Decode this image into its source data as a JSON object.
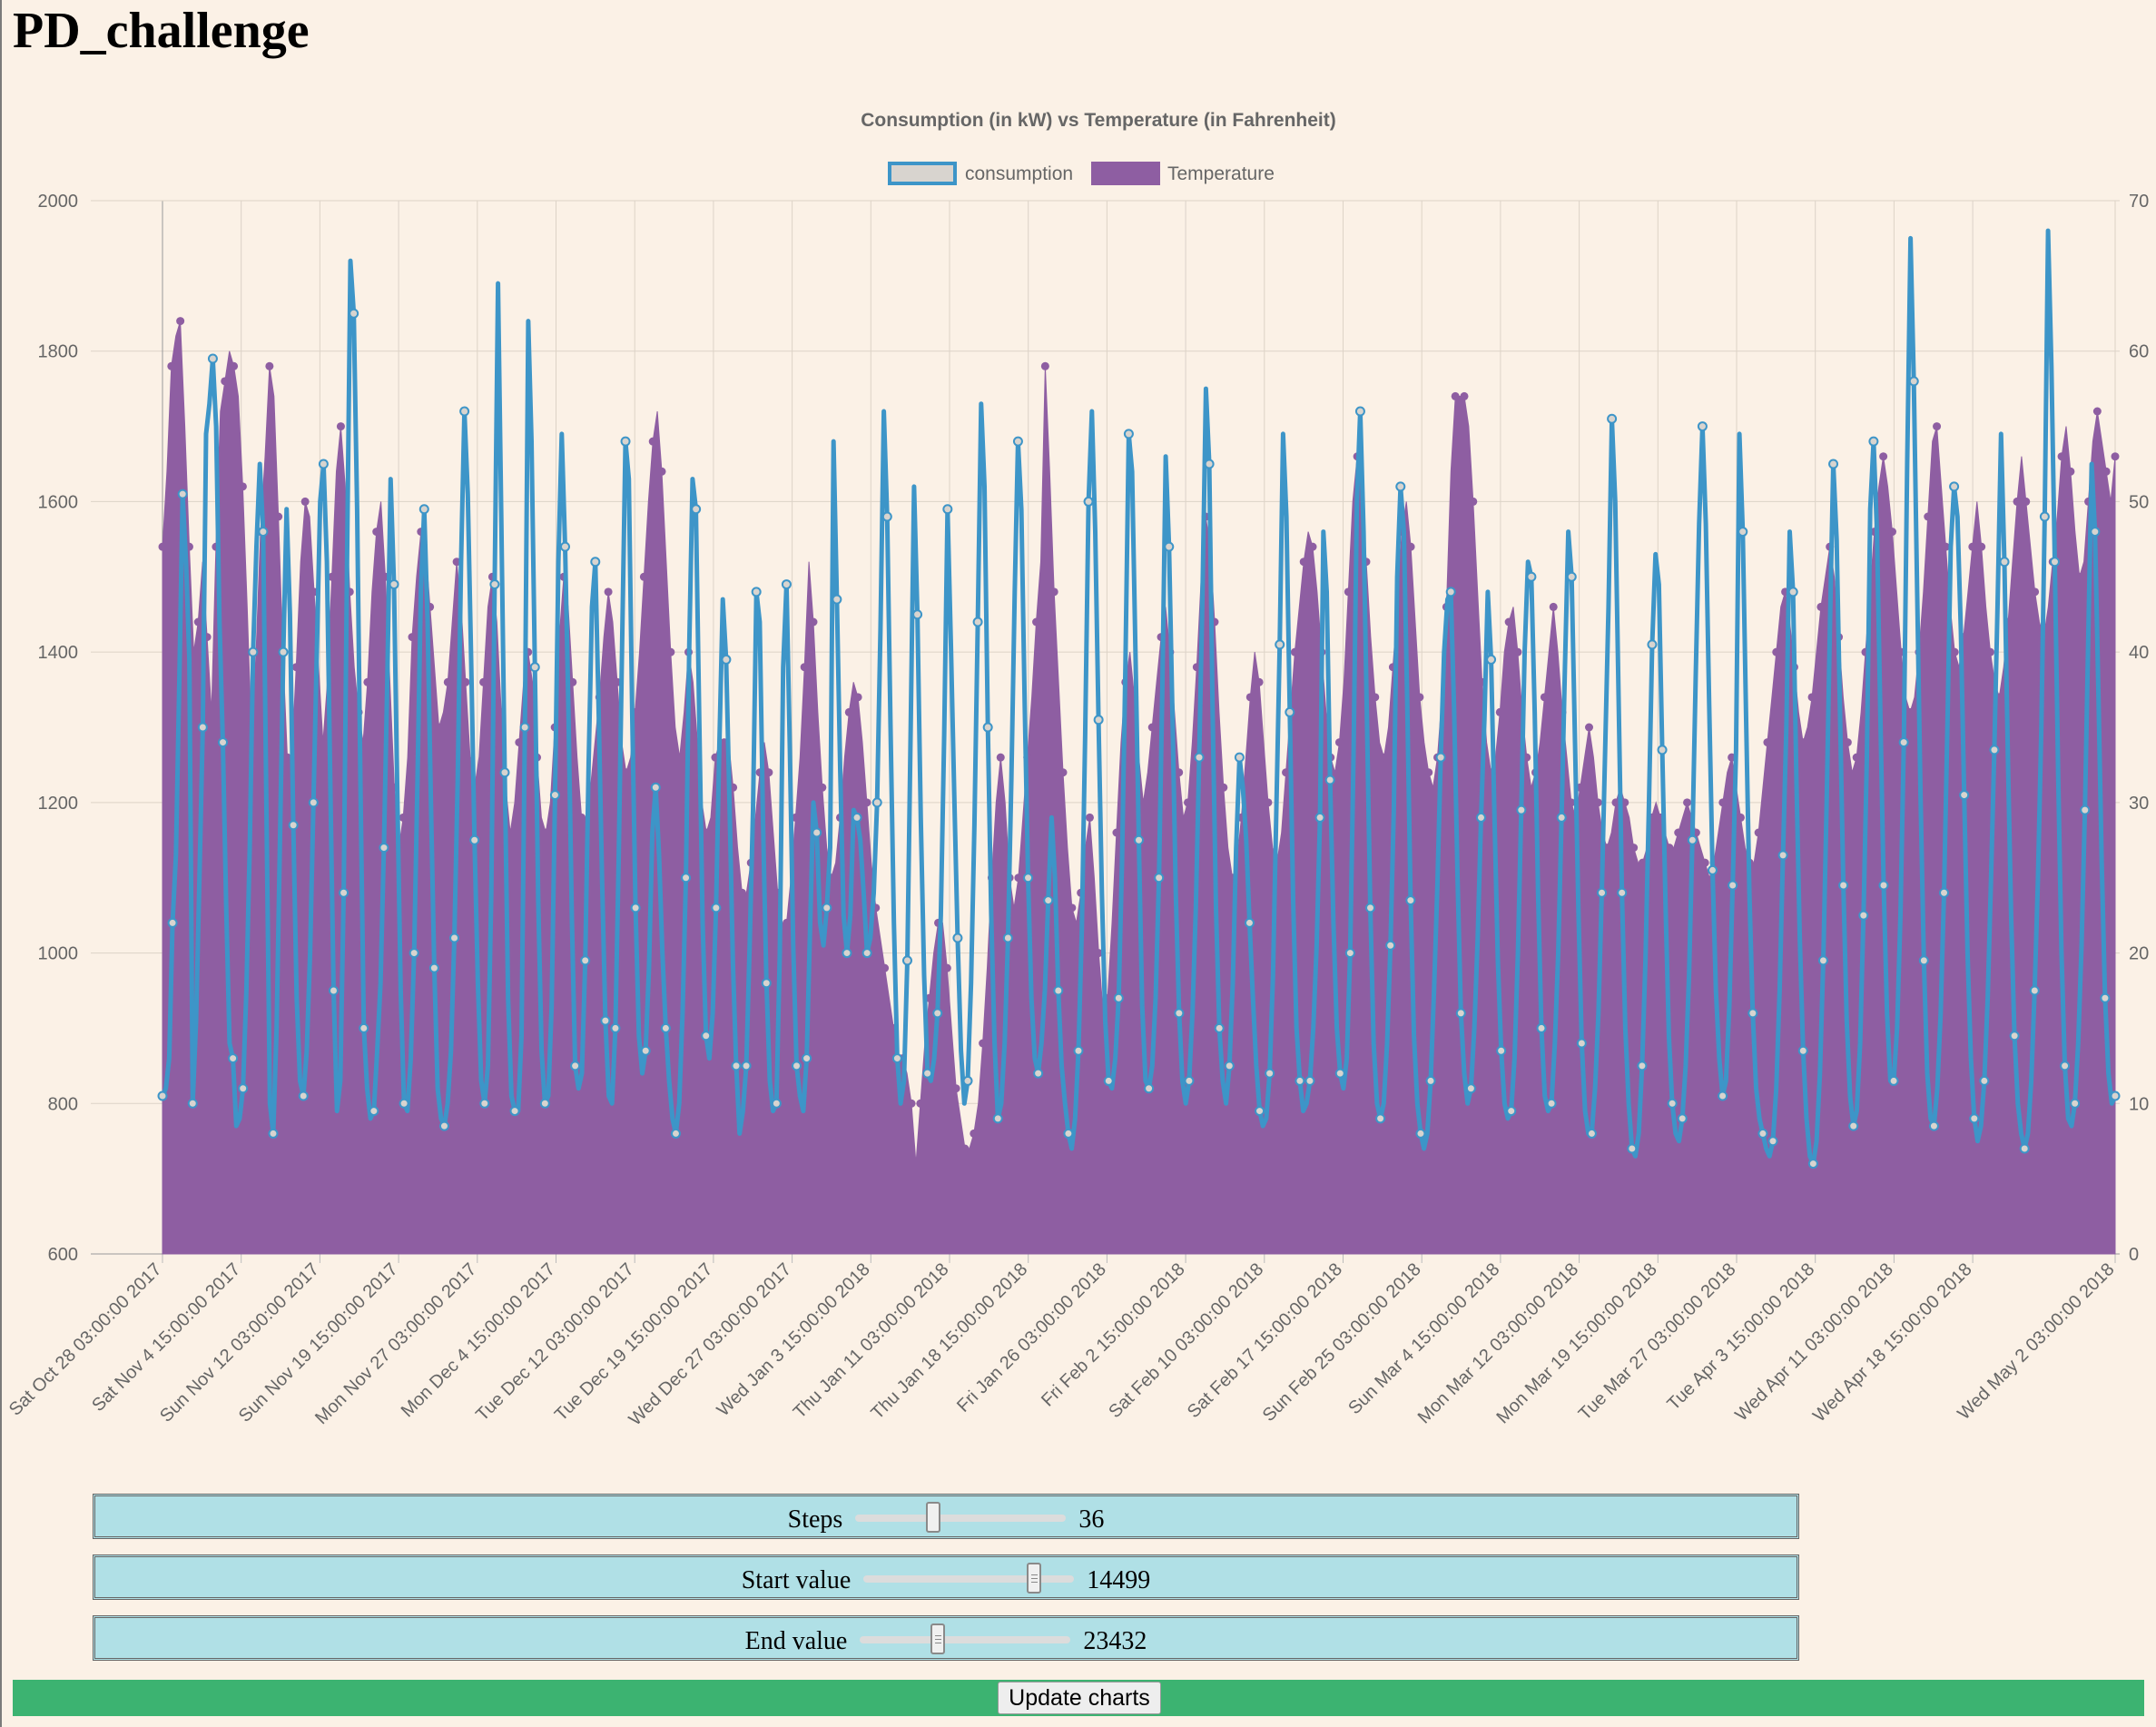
{
  "page": {
    "title": "PD_challenge"
  },
  "colors": {
    "consumption": "#3d95c8",
    "temperature": "#8e5ea2",
    "control_bg": "#b0e0e6",
    "update_bar": "#3cb371"
  },
  "chart_data": {
    "type": "line",
    "title": "Consumption (in kW) vs Temperature (in Fahrenheit)",
    "legend_position": "top",
    "grid": true,
    "x_tick_labels": [
      "Sat Oct 28 03:00:00 2017",
      "Sat Nov  4 15:00:00 2017",
      "Sun Nov 12 03:00:00 2017",
      "Sun Nov 19 15:00:00 2017",
      "Mon Nov 27 03:00:00 2017",
      "Mon Dec  4 15:00:00 2017",
      "Tue Dec 12 03:00:00 2017",
      "Tue Dec 19 15:00:00 2017",
      "Wed Dec 27 03:00:00 2017",
      "Wed Jan  3 15:00:00 2018",
      "Thu Jan 11 03:00:00 2018",
      "Thu Jan 18 15:00:00 2018",
      "Fri Jan 26 03:00:00 2018",
      "Fri Feb  2 15:00:00 2018",
      "Sat Feb 10 03:00:00 2018",
      "Sat Feb 17 15:00:00 2018",
      "Sun Feb 25 03:00:00 2018",
      "Sun Mar  4 15:00:00 2018",
      "Mon Mar 12 03:00:00 2018",
      "Mon Mar 19 15:00:00 2018",
      "Tue Mar 27 03:00:00 2018",
      "Tue Apr  3 15:00:00 2018",
      "Wed Apr 11 03:00:00 2018",
      "Wed Apr 18 15:00:00 2018",
      "Wed May  2 03:00:00 2018"
    ],
    "y_left": {
      "min": 600,
      "max": 2000,
      "ticks": [
        600,
        800,
        1000,
        1200,
        1400,
        1600,
        1800,
        2000
      ]
    },
    "y_right": {
      "min": 0,
      "max": 70,
      "ticks": [
        0,
        10,
        20,
        30,
        40,
        50,
        60,
        70
      ]
    },
    "series": [
      {
        "name": "consumption",
        "axis": "left",
        "style": "line",
        "values": [
          810,
          820,
          860,
          1040,
          1130,
          1360,
          1610,
          1520,
          1390,
          800,
          910,
          1100,
          1300,
          1690,
          1730,
          1790,
          1700,
          1440,
          1280,
          1060,
          880,
          860,
          770,
          780,
          820,
          950,
          1140,
          1400,
          1540,
          1650,
          1560,
          1180,
          800,
          760,
          900,
          1150,
          1400,
          1590,
          1450,
          1170,
          940,
          830,
          810,
          870,
          1000,
          1200,
          1400,
          1600,
          1650,
          1520,
          1230,
          950,
          790,
          830,
          1080,
          1520,
          1920,
          1850,
          1590,
          1220,
          900,
          820,
          780,
          790,
          870,
          960,
          1140,
          1360,
          1630,
          1490,
          1210,
          950,
          800,
          790,
          860,
          1000,
          1230,
          1480,
          1590,
          1440,
          1200,
          980,
          820,
          780,
          770,
          800,
          870,
          1020,
          1230,
          1520,
          1720,
          1610,
          1390,
          1150,
          960,
          830,
          800,
          850,
          1080,
          1490,
          1890,
          1570,
          1240,
          940,
          810,
          790,
          790,
          890,
          1300,
          1840,
          1680,
          1380,
          1070,
          870,
          800,
          810,
          930,
          1210,
          1520,
          1690,
          1540,
          1320,
          1050,
          850,
          820,
          840,
          990,
          1250,
          1460,
          1520,
          1320,
          1100,
          910,
          810,
          800,
          900,
          1130,
          1410,
          1680,
          1630,
          1320,
          1060,
          890,
          840,
          870,
          980,
          1160,
          1220,
          1130,
          1000,
          900,
          830,
          780,
          760,
          800,
          920,
          1100,
          1410,
          1630,
          1590,
          1310,
          1040,
          890,
          860,
          920,
          1060,
          1280,
          1470,
          1390,
          1200,
          990,
          850,
          760,
          790,
          850,
          1010,
          1190,
          1480,
          1440,
          1170,
          960,
          830,
          790,
          800,
          1000,
          1380,
          1490,
          1270,
          1010,
          850,
          810,
          790,
          860,
          1030,
          1200,
          1160,
          1040,
          1010,
          1060,
          1140,
          1680,
          1470,
          1240,
          1050,
          1000,
          1050,
          1190,
          1180,
          1150,
          1080,
          1000,
          1020,
          1080,
          1200,
          1430,
          1720,
          1580,
          1300,
          1040,
          860,
          800,
          830,
          990,
          1300,
          1620,
          1450,
          1180,
          970,
          840,
          830,
          860,
          920,
          1050,
          1290,
          1590,
          1410,
          1210,
          1020,
          870,
          800,
          830,
          960,
          1170,
          1440,
          1730,
          1620,
          1300,
          1050,
          880,
          780,
          800,
          880,
          1020,
          1230,
          1480,
          1680,
          1590,
          1330,
          1100,
          940,
          860,
          840,
          880,
          950,
          1070,
          1180,
          1100,
          950,
          850,
          800,
          760,
          740,
          780,
          870,
          1030,
          1290,
          1600,
          1720,
          1560,
          1310,
          1080,
          910,
          830,
          820,
          860,
          940,
          1120,
          1380,
          1690,
          1640,
          1400,
          1150,
          930,
          830,
          820,
          850,
          940,
          1100,
          1350,
          1660,
          1540,
          1320,
          1080,
          920,
          830,
          800,
          830,
          920,
          1060,
          1260,
          1480,
          1750,
          1650,
          1320,
          1060,
          900,
          830,
          800,
          850,
          960,
          1140,
          1260,
          1220,
          1150,
          1040,
          940,
          850,
          790,
          770,
          780,
          840,
          970,
          1190,
          1410,
          1690,
          1580,
          1320,
          1070,
          900,
          830,
          790,
          800,
          830,
          900,
          1010,
          1180,
          1560,
          1480,
          1230,
          1040,
          900,
          840,
          820,
          860,
          1000,
          1260,
          1600,
          1720,
          1560,
          1310,
          1060,
          880,
          800,
          780,
          800,
          880,
          1010,
          1190,
          1500,
          1620,
          1560,
          1330,
          1070,
          890,
          800,
          760,
          740,
          760,
          830,
          950,
          1090,
          1260,
          1400,
          1470,
          1480,
          1320,
          1100,
          920,
          840,
          800,
          820,
          900,
          1020,
          1180,
          1310,
          1480,
          1390,
          1180,
          990,
          870,
          800,
          780,
          790,
          860,
          1000,
          1190,
          1400,
          1520,
          1500,
          1320,
          1080,
          900,
          810,
          790,
          800,
          880,
          1000,
          1180,
          1380,
          1560,
          1500,
          1280,
          1060,
          880,
          790,
          760,
          760,
          820,
          920,
          1080,
          1270,
          1460,
          1710,
          1600,
          1340,
          1080,
          900,
          800,
          740,
          730,
          760,
          850,
          990,
          1190,
          1410,
          1530,
          1490,
          1270,
          1060,
          890,
          800,
          760,
          750,
          780,
          850,
          970,
          1150,
          1370,
          1570,
          1700,
          1570,
          1330,
          1110,
          950,
          860,
          810,
          830,
          930,
          1090,
          1270,
          1690,
          1560,
          1310,
          1080,
          920,
          820,
          780,
          760,
          740,
          730,
          750,
          820,
          950,
          1130,
          1300,
          1560,
          1480,
          1230,
          1020,
          870,
          780,
          730,
          720,
          750,
          840,
          990,
          1200,
          1440,
          1650,
          1550,
          1320,
          1090,
          910,
          810,
          770,
          790,
          880,
          1050,
          1260,
          1590,
          1680,
          1560,
          1320,
          1090,
          920,
          830,
          830,
          900,
          1050,
          1280,
          1650,
          1950,
          1760,
          1480,
          1210,
          990,
          840,
          780,
          770,
          820,
          920,
          1080,
          1300,
          1540,
          1620,
          1580,
          1430,
          1210,
          1000,
          860,
          780,
          750,
          770,
          830,
          940,
          1100,
          1270,
          1470,
          1690,
          1520,
          1270,
          1050,
          890,
          800,
          760,
          740,
          760,
          830,
          950,
          1100,
          1300,
          1580,
          1960,
          1780,
          1520,
          1240,
          1000,
          850,
          780,
          770,
          800,
          880,
          1010,
          1190,
          1420,
          1650,
          1560,
          1350,
          1120,
          940,
          840,
          800,
          810
        ]
      },
      {
        "name": "Temperature",
        "axis": "right",
        "style": "area",
        "values": [
          47,
          52,
          59,
          61,
          62,
          55,
          47,
          40,
          42,
          46,
          41,
          36,
          47,
          56,
          58,
          60,
          59,
          57,
          51,
          43,
          34,
          40,
          48,
          53,
          59,
          57,
          49,
          40,
          33,
          33,
          39,
          46,
          50,
          49,
          44,
          39,
          34,
          38,
          45,
          52,
          55,
          51,
          44,
          39,
          36,
          34,
          38,
          44,
          48,
          50,
          45,
          38,
          31,
          27,
          29,
          33,
          41,
          45,
          48,
          47,
          43,
          39,
          35,
          36,
          38,
          42,
          46,
          43,
          38,
          33,
          31,
          33,
          38,
          43,
          45,
          42,
          36,
          31,
          28,
          30,
          34,
          38,
          40,
          38,
          33,
          29,
          28,
          30,
          35,
          41,
          45,
          43,
          38,
          33,
          29,
          29,
          31,
          34,
          37,
          41,
          44,
          42,
          38,
          34,
          32,
          33,
          36,
          40,
          45,
          50,
          54,
          56,
          52,
          46,
          40,
          35,
          33,
          36,
          40,
          38,
          34,
          30,
          28,
          29,
          33,
          34,
          34,
          34,
          31,
          27,
          24,
          24,
          26,
          29,
          32,
          34,
          32,
          28,
          24,
          22,
          22,
          25,
          29,
          33,
          39,
          46,
          42,
          36,
          31,
          27,
          25,
          26,
          29,
          33,
          36,
          38,
          37,
          34,
          30,
          26,
          23,
          21,
          19,
          17,
          15,
          13,
          13,
          12,
          10,
          6,
          10,
          14,
          17,
          20,
          22,
          22,
          19,
          15,
          11,
          9,
          7,
          7,
          8,
          10,
          14,
          19,
          25,
          30,
          33,
          30,
          25,
          23,
          25,
          29,
          33,
          37,
          42,
          46,
          59,
          52,
          44,
          38,
          32,
          27,
          23,
          22,
          24,
          27,
          29,
          25,
          20,
          16,
          17,
          22,
          28,
          34,
          38,
          40,
          37,
          33,
          30,
          32,
          35,
          38,
          41,
          43,
          40,
          36,
          32,
          29,
          30,
          34,
          39,
          45,
          49,
          47,
          42,
          36,
          31,
          27,
          25,
          26,
          29,
          33,
          37,
          40,
          38,
          34,
          30,
          27,
          26,
          28,
          32,
          36,
          40,
          43,
          46,
          48,
          47,
          44,
          40,
          36,
          33,
          32,
          34,
          38,
          44,
          50,
          53,
          51,
          46,
          41,
          37,
          34,
          33,
          35,
          39,
          43,
          48,
          50,
          47,
          42,
          37,
          34,
          32,
          31,
          33,
          37,
          43,
          52,
          57,
          57,
          57,
          55,
          50,
          44,
          38,
          34,
          32,
          33,
          36,
          40,
          42,
          43,
          40,
          36,
          33,
          31,
          32,
          34,
          37,
          40,
          43,
          40,
          36,
          33,
          30,
          29,
          31,
          33,
          35,
          33,
          30,
          28,
          27,
          28,
          30,
          31,
          30,
          29,
          27,
          26,
          26,
          27,
          29,
          30,
          29,
          28,
          27,
          27,
          28,
          29,
          30,
          29,
          28,
          27,
          26,
          25,
          26,
          28,
          30,
          32,
          33,
          31,
          29,
          27,
          26,
          26,
          28,
          31,
          34,
          37,
          40,
          43,
          44,
          42,
          39,
          36,
          34,
          35,
          37,
          40,
          43,
          45,
          47,
          45,
          41,
          37,
          34,
          32,
          33,
          36,
          40,
          44,
          48,
          51,
          53,
          51,
          48,
          44,
          40,
          37,
          36,
          37,
          40,
          44,
          49,
          54,
          55,
          51,
          47,
          43,
          40,
          39,
          41,
          44,
          47,
          50,
          47,
          43,
          40,
          38,
          37,
          39,
          42,
          46,
          50,
          53,
          50,
          47,
          44,
          42,
          41,
          43,
          46,
          49,
          53,
          55,
          52,
          48,
          45,
          46,
          50,
          54,
          56,
          54,
          52,
          50,
          53
        ]
      }
    ]
  },
  "controls": [
    {
      "label": "Steps",
      "value": "36",
      "fraction": 0.36
    },
    {
      "label": "Start value",
      "value": "14499",
      "fraction": 0.83
    },
    {
      "label": "End value",
      "value": "23432",
      "fraction": 0.36
    }
  ],
  "update_button": {
    "label": "Update charts"
  }
}
